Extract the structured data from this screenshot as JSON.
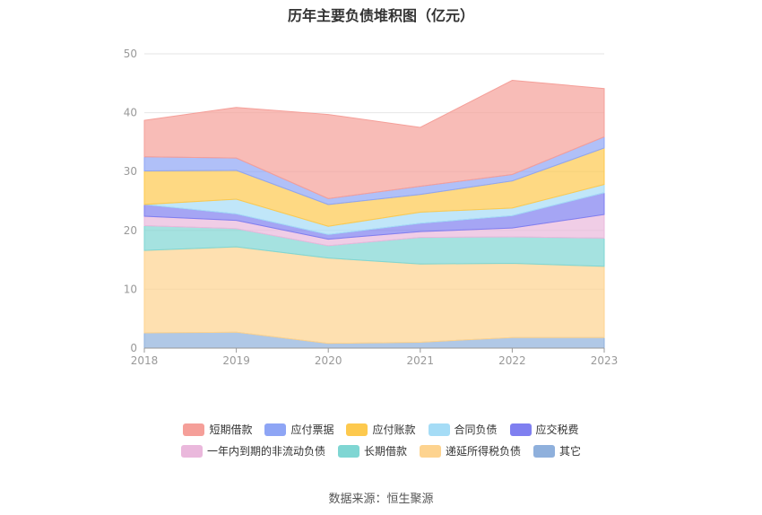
{
  "chart_data": {
    "type": "area",
    "stacked": true,
    "title": "历年主要负债堆积图（亿元）",
    "source": "数据来源：恒生聚源",
    "x": [
      "2018",
      "2019",
      "2020",
      "2021",
      "2022",
      "2023"
    ],
    "ylim": [
      0,
      50
    ],
    "yticks": [
      0,
      10,
      20,
      30,
      40,
      50
    ],
    "grid": true,
    "legend_position": "bottom",
    "series": [
      {
        "name": "其它",
        "color": "#8fb0dc",
        "values": [
          2.6,
          2.7,
          0.8,
          1.0,
          1.8,
          1.8
        ]
      },
      {
        "name": "递延所得税负债",
        "color": "#fdd38f",
        "values": [
          14.0,
          14.5,
          14.5,
          13.3,
          12.6,
          12.1
        ]
      },
      {
        "name": "长期借款",
        "color": "#7fd6d3",
        "values": [
          4.2,
          3.1,
          2.1,
          4.5,
          4.5,
          4.8
        ]
      },
      {
        "name": "一年内到期的非流动负债",
        "color": "#eab8dc",
        "values": [
          1.6,
          1.4,
          1.1,
          1.0,
          1.5,
          4.0
        ]
      },
      {
        "name": "应交税费",
        "color": "#7f7ff0",
        "values": [
          2.0,
          1.1,
          0.8,
          1.4,
          2.1,
          3.7
        ]
      },
      {
        "name": "合同负债",
        "color": "#a5dcf6",
        "values": [
          0,
          2.5,
          1.4,
          1.9,
          1.3,
          1.4
        ]
      },
      {
        "name": "应付账款",
        "color": "#fdc94e",
        "values": [
          5.7,
          4.9,
          3.7,
          3.0,
          4.6,
          6.2
        ]
      },
      {
        "name": "应付票据",
        "color": "#8ea5f5",
        "values": [
          2.4,
          2.1,
          1.0,
          1.4,
          1.1,
          1.9
        ]
      },
      {
        "name": "短期借款",
        "color": "#f59f99",
        "values": [
          6.2,
          8.6,
          14.3,
          10.0,
          16.0,
          8.2
        ]
      }
    ],
    "legend_rows": [
      [
        "短期借款",
        "应付票据",
        "应付账款",
        "合同负债",
        "应交税费"
      ],
      [
        "一年内到期的非流动负债",
        "长期借款",
        "递延所得税负债",
        "其它"
      ]
    ]
  }
}
